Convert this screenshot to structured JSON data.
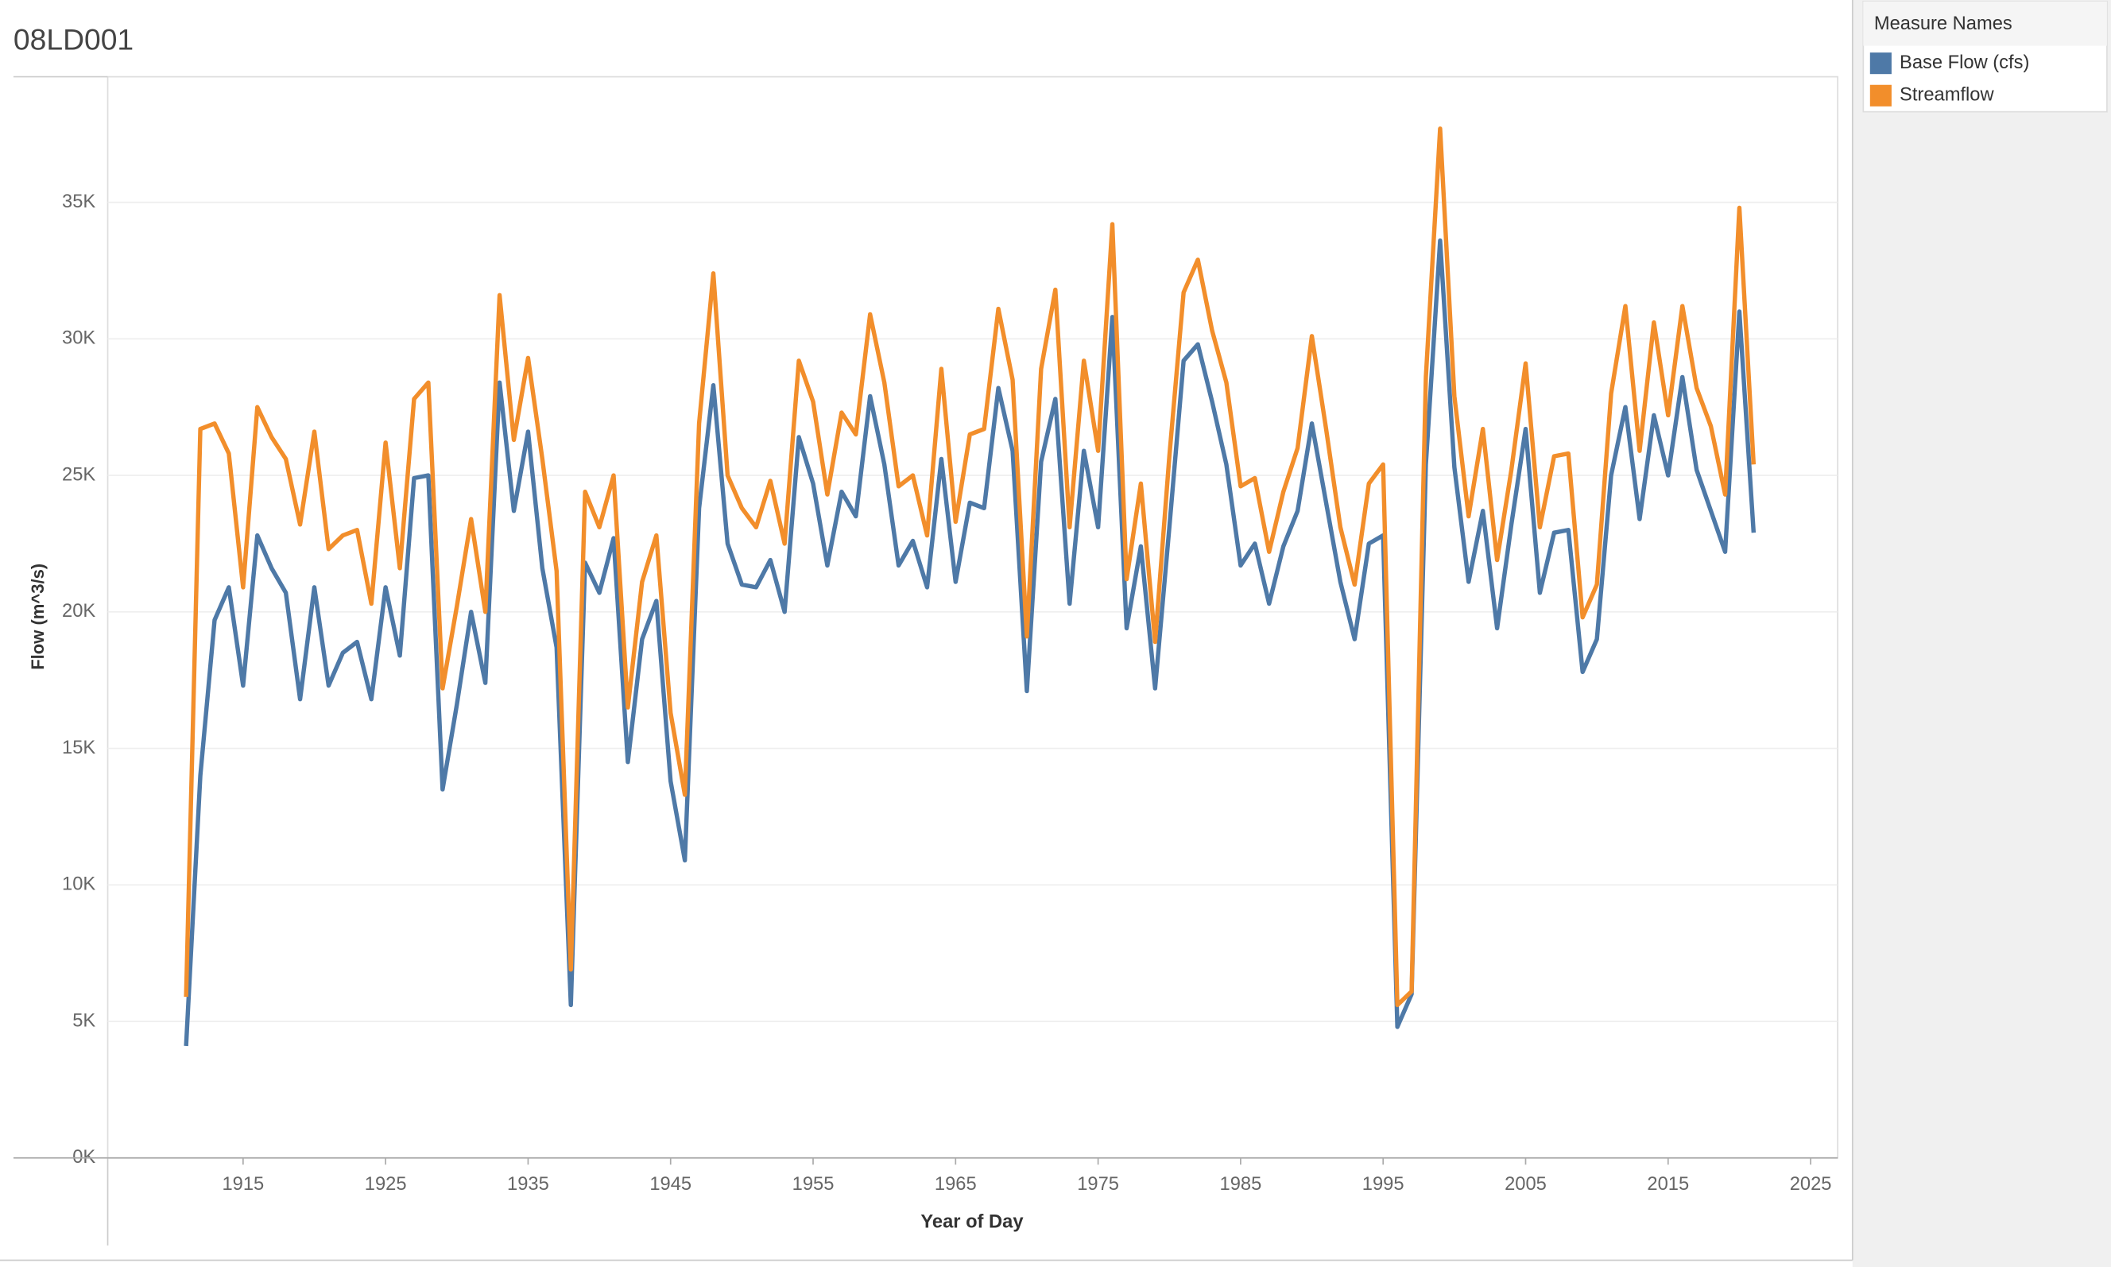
{
  "chart_data": {
    "type": "line",
    "title": "08LD001",
    "x_label": "Year of Day",
    "y_label": "Flow (m^3/s)",
    "legend_title": "Measure Names",
    "x": [
      1911,
      1912,
      1913,
      1914,
      1915,
      1916,
      1917,
      1918,
      1919,
      1920,
      1921,
      1922,
      1923,
      1924,
      1925,
      1926,
      1927,
      1928,
      1929,
      1930,
      1931,
      1932,
      1933,
      1934,
      1935,
      1936,
      1937,
      1938,
      1939,
      1940,
      1941,
      1942,
      1943,
      1944,
      1945,
      1946,
      1947,
      1948,
      1949,
      1950,
      1951,
      1952,
      1953,
      1954,
      1955,
      1956,
      1957,
      1958,
      1959,
      1960,
      1961,
      1962,
      1963,
      1964,
      1965,
      1966,
      1967,
      1968,
      1969,
      1970,
      1971,
      1972,
      1973,
      1974,
      1975,
      1976,
      1977,
      1978,
      1979,
      1980,
      1981,
      1982,
      1983,
      1984,
      1985,
      1986,
      1987,
      1988,
      1989,
      1990,
      1991,
      1992,
      1993,
      1994,
      1995,
      1996,
      1997,
      1998,
      1999,
      2000,
      2001,
      2002,
      2003,
      2004,
      2005,
      2006,
      2007,
      2008,
      2009,
      2010,
      2011,
      2012,
      2013,
      2014,
      2015,
      2016,
      2017,
      2018,
      2019,
      2020,
      2021
    ],
    "series": [
      {
        "name": "Base Flow (cfs)",
        "color": "#4e79a7",
        "values": [
          4100,
          14000,
          19700,
          20900,
          17300,
          22800,
          21600,
          20700,
          16800,
          20900,
          17300,
          18500,
          18900,
          16800,
          20900,
          18400,
          24900,
          25000,
          13500,
          16600,
          20000,
          17400,
          28400,
          23700,
          26600,
          21600,
          18700,
          5600,
          21800,
          20700,
          22700,
          14500,
          19000,
          20400,
          13800,
          10900,
          23800,
          28300,
          22500,
          21000,
          20900,
          21900,
          20000,
          26400,
          24700,
          21700,
          24400,
          23500,
          27900,
          25400,
          21700,
          22600,
          20900,
          25600,
          21100,
          24000,
          23800,
          28200,
          25900,
          17100,
          25500,
          27800,
          20300,
          25900,
          23100,
          30800,
          19400,
          22400,
          17200,
          23100,
          29200,
          29800,
          27700,
          25400,
          21700,
          22500,
          20300,
          22400,
          23700,
          26900,
          24000,
          21100,
          19000,
          22500,
          22800,
          4800,
          6000,
          25400,
          33600,
          25300,
          21100,
          23700,
          19400,
          23200,
          26700,
          20700,
          22900,
          23000,
          17800,
          19000,
          25000,
          27500,
          23400,
          27200,
          25000,
          28600,
          25200,
          23700,
          22200,
          31000,
          22900
        ]
      },
      {
        "name": "Streamflow",
        "color": "#f28e2b",
        "values": [
          5900,
          26700,
          26900,
          25800,
          20900,
          27500,
          26400,
          25600,
          23200,
          26600,
          22300,
          22800,
          23000,
          20300,
          26200,
          21600,
          27800,
          28400,
          17200,
          20200,
          23400,
          20000,
          31600,
          26300,
          29300,
          25600,
          21500,
          6900,
          24400,
          23100,
          25000,
          16500,
          21100,
          22800,
          16300,
          13300,
          26900,
          32400,
          25000,
          23800,
          23100,
          24800,
          22500,
          29200,
          27700,
          24300,
          27300,
          26500,
          30900,
          28400,
          24600,
          25000,
          22800,
          28900,
          23300,
          26500,
          26700,
          31100,
          28500,
          19100,
          28900,
          31800,
          23100,
          29200,
          25900,
          34200,
          21200,
          24700,
          18900,
          25700,
          31700,
          32900,
          30300,
          28400,
          24600,
          24900,
          22200,
          24400,
          26000,
          30100,
          26700,
          23100,
          21000,
          24700,
          25400,
          5600,
          6100,
          28600,
          37700,
          27900,
          23500,
          26700,
          21900,
          25200,
          29100,
          23100,
          25700,
          25800,
          19800,
          21000,
          28000,
          31200,
          25900,
          30600,
          27200,
          31200,
          28200,
          26800,
          24300,
          34800,
          25400
        ]
      }
    ],
    "xlim": [
      1905.5,
      2026.9
    ],
    "xticks": [
      1915,
      1925,
      1935,
      1945,
      1955,
      1965,
      1975,
      1985,
      1995,
      2005,
      2015,
      2025
    ],
    "ylim": [
      0,
      39600
    ],
    "yticks": [
      {
        "value": 0,
        "label": "0K"
      },
      {
        "value": 5000,
        "label": "5K"
      },
      {
        "value": 10000,
        "label": "10K"
      },
      {
        "value": 15000,
        "label": "15K"
      },
      {
        "value": 20000,
        "label": "20K"
      },
      {
        "value": 25000,
        "label": "25K"
      },
      {
        "value": 30000,
        "label": "30K"
      },
      {
        "value": 35000,
        "label": "35K"
      }
    ],
    "grid": true
  }
}
